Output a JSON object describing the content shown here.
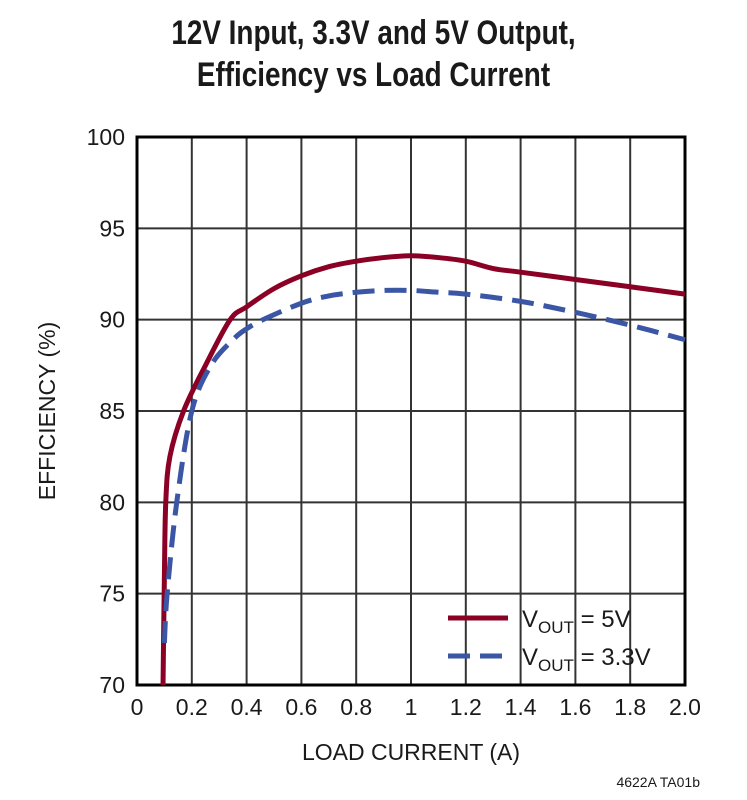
{
  "chart_data": {
    "type": "line",
    "title": [
      "12V Input, 3.3V and 5V Output,",
      "Efficiency vs Load Current"
    ],
    "xlabel": "LOAD CURRENT (A)",
    "ylabel": "EFFICIENCY (%)",
    "xlim": [
      0,
      2.0
    ],
    "ylim": [
      70,
      100
    ],
    "xticks": [
      "0",
      "0.2",
      "0.4",
      "0.6",
      "0.8",
      "1",
      "1.2",
      "1.4",
      "1.6",
      "1.8",
      "2.0"
    ],
    "yticks": [
      "70",
      "75",
      "80",
      "85",
      "90",
      "95",
      "100"
    ],
    "grid": true,
    "legend_position": "bottom-right",
    "series": [
      {
        "name": "VOUT = 5V",
        "name_parts": [
          "V",
          "OUT",
          " = 5V"
        ],
        "color": "#8b0025",
        "style": "solid",
        "x": [
          0.095,
          0.1,
          0.105,
          0.12,
          0.17,
          0.25,
          0.34,
          0.4,
          0.5,
          0.6,
          0.7,
          0.8,
          0.9,
          1.0,
          1.1,
          1.2,
          1.3,
          1.4,
          1.6,
          1.8,
          2.0
        ],
        "y": [
          70,
          76,
          80,
          82.5,
          85,
          87.5,
          90,
          90.7,
          91.7,
          92.4,
          92.9,
          93.2,
          93.4,
          93.5,
          93.4,
          93.2,
          92.8,
          92.6,
          92.2,
          91.8,
          91.4
        ]
      },
      {
        "name": "VOUT = 3.3V",
        "name_parts": [
          "V",
          "OUT",
          " = 3.3V"
        ],
        "color": "#3a56a5",
        "style": "dashed",
        "x": [
          0.1,
          0.11,
          0.145,
          0.2,
          0.27,
          0.35,
          0.4,
          0.46,
          0.6,
          0.7,
          0.8,
          0.9,
          1.0,
          1.1,
          1.2,
          1.4,
          1.6,
          1.8,
          2.0
        ],
        "y": [
          72.3,
          75,
          80,
          85,
          87.5,
          88.9,
          89.5,
          90,
          90.9,
          91.3,
          91.5,
          91.6,
          91.6,
          91.5,
          91.4,
          91.0,
          90.4,
          89.7,
          88.9
        ]
      }
    ],
    "footnote": "4622A TA01b"
  }
}
